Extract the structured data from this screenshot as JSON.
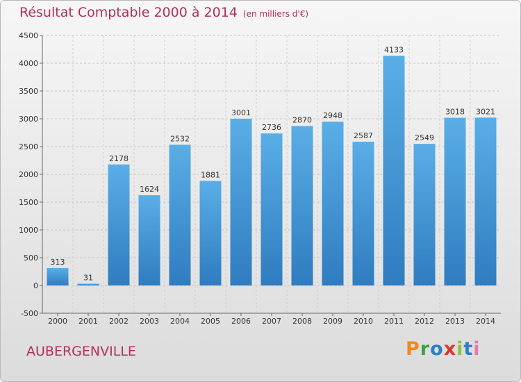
{
  "header": {
    "title": "Résultat Comptable 2000 à 2014",
    "subtitle": "(en milliers d'€)"
  },
  "footer": {
    "city": "AUBERGENVILLE",
    "logo_letters": [
      "P",
      "r",
      "o",
      "x",
      "i",
      "t",
      "i"
    ]
  },
  "colors": {
    "title": "#b0305a",
    "bar_light": "#5aaee6",
    "bar_dark": "#2f7cc0",
    "logo": [
      "#f0891e",
      "#3ca040",
      "#2a7fc8",
      "#e2342c",
      "#8fc33c",
      "#2a7fc8",
      "#e87aa8"
    ]
  },
  "chart_data": {
    "type": "bar",
    "title": "Résultat Comptable 2000 à 2014",
    "subtitle": "(en milliers d'€)",
    "categories": [
      "2000",
      "2001",
      "2002",
      "2003",
      "2004",
      "2005",
      "2006",
      "2007",
      "2008",
      "2009",
      "2010",
      "2011",
      "2012",
      "2013",
      "2014"
    ],
    "values": [
      313,
      31,
      2178,
      1624,
      2532,
      1881,
      3001,
      2736,
      2870,
      2948,
      2587,
      4133,
      2549,
      3018,
      3021
    ],
    "value_labels": [
      "313",
      "31",
      "2178",
      "1624",
      "2532",
      "1881",
      "3001",
      "2736",
      "2870",
      "2948",
      "2587",
      "4133",
      "2549",
      "3018",
      "3021"
    ],
    "ylim": [
      -500,
      4500
    ],
    "yticks": [
      -500,
      0,
      500,
      1000,
      1500,
      2000,
      2500,
      3000,
      3500,
      4000,
      4500
    ],
    "ytick_labels": [
      "-500",
      "0",
      "500",
      "1000",
      "1500",
      "2000",
      "2500",
      "3000",
      "3500",
      "4000",
      "4500"
    ],
    "grid": "horizontal dashed",
    "legend": "none"
  }
}
